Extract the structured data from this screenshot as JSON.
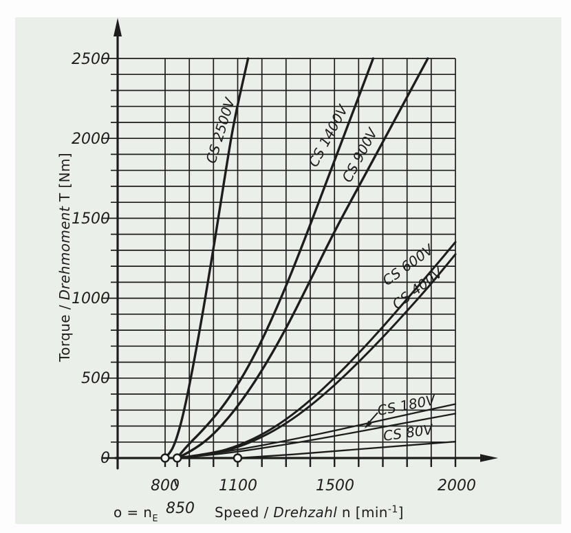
{
  "colors": {
    "ink": "#1d1d1b",
    "card_bg": "#eaefe9",
    "page_bg": "#fdfdfd"
  },
  "chart_data": {
    "type": "line",
    "title": "",
    "xlabel": "Speed / Drehzahl n [min-1]",
    "ylabel": "Torque / Drehmoment T [Nm]",
    "x_axis": {
      "min": 800,
      "max": 2000,
      "minor_step": 100,
      "tick_values": [
        800,
        850,
        1100,
        1500,
        2000
      ],
      "unit": "min-1"
    },
    "y_axis": {
      "min": 0,
      "max": 2500,
      "minor_step": 100,
      "major_step": 500,
      "tick_values": [
        0,
        500,
        1000,
        1500,
        2000,
        2500
      ],
      "unit": "Nm"
    },
    "xtick_labels": [
      "800",
      "850",
      "1100",
      "1500",
      "2000"
    ],
    "ytick_labels": [
      "2500",
      "2000",
      "1500",
      "1000",
      "500",
      "0"
    ],
    "grid": "on",
    "engagement_speeds": [
      800,
      850,
      1100
    ],
    "series": [
      {
        "name": "CS 2500V",
        "n_e": 800,
        "points": [
          [
            800,
            0
          ],
          [
            820,
            30
          ],
          [
            840,
            90
          ],
          [
            860,
            185
          ],
          [
            882,
            320
          ],
          [
            905,
            490
          ],
          [
            930,
            690
          ],
          [
            958,
            930
          ],
          [
            988,
            1200
          ],
          [
            1020,
            1500
          ],
          [
            1052,
            1810
          ],
          [
            1085,
            2110
          ],
          [
            1143,
            2500
          ]
        ]
      },
      {
        "name": "CS 1400V",
        "n_e": 850,
        "points": [
          [
            850,
            0
          ],
          [
            880,
            60
          ],
          [
            960,
            180
          ],
          [
            1060,
            360
          ],
          [
            1160,
            610
          ],
          [
            1260,
            930
          ],
          [
            1360,
            1300
          ],
          [
            1460,
            1700
          ],
          [
            1560,
            2100
          ],
          [
            1660,
            2500
          ]
        ]
      },
      {
        "name": "CS 900V",
        "n_e": 850,
        "points": [
          [
            850,
            0
          ],
          [
            900,
            35
          ],
          [
            990,
            130
          ],
          [
            1090,
            300
          ],
          [
            1190,
            520
          ],
          [
            1290,
            780
          ],
          [
            1390,
            1080
          ],
          [
            1490,
            1390
          ],
          [
            1590,
            1670
          ],
          [
            1690,
            1950
          ],
          [
            1790,
            2230
          ],
          [
            1886,
            2500
          ]
        ]
      },
      {
        "name": "CS 600V",
        "n_e": 850,
        "points": [
          [
            850,
            0
          ],
          [
            1000,
            30
          ],
          [
            1100,
            75
          ],
          [
            1200,
            145
          ],
          [
            1300,
            240
          ],
          [
            1400,
            360
          ],
          [
            1500,
            500
          ],
          [
            1600,
            655
          ],
          [
            1700,
            820
          ],
          [
            1800,
            995
          ],
          [
            1900,
            1170
          ],
          [
            2000,
            1351
          ]
        ]
      },
      {
        "name": "CS 400V",
        "n_e": 850,
        "points": [
          [
            850,
            0
          ],
          [
            1000,
            26
          ],
          [
            1100,
            66
          ],
          [
            1200,
            130
          ],
          [
            1300,
            215
          ],
          [
            1400,
            325
          ],
          [
            1500,
            455
          ],
          [
            1600,
            600
          ],
          [
            1700,
            755
          ],
          [
            1800,
            920
          ],
          [
            1900,
            1090
          ],
          [
            2000,
            1275
          ]
        ]
      },
      {
        "name": "CS 180V",
        "n_e": 850,
        "points": [
          [
            850,
            0
          ],
          [
            1000,
            28
          ],
          [
            1150,
            65
          ],
          [
            1300,
            108
          ],
          [
            1450,
            155
          ],
          [
            1600,
            205
          ],
          [
            1800,
            272
          ],
          [
            2000,
            338
          ]
        ]
      },
      {
        "name": "CS 180V (lower line)",
        "n_e": 850,
        "points": [
          [
            850,
            0
          ],
          [
            1000,
            20
          ],
          [
            1150,
            50
          ],
          [
            1300,
            85
          ],
          [
            1450,
            124
          ],
          [
            1600,
            165
          ],
          [
            1800,
            222
          ],
          [
            2000,
            278
          ]
        ]
      },
      {
        "name": "CS 80V",
        "n_e": 1100,
        "points": [
          [
            1100,
            0
          ],
          [
            1250,
            14
          ],
          [
            1400,
            31
          ],
          [
            1550,
            49
          ],
          [
            1700,
            67
          ],
          [
            1850,
            85
          ],
          [
            2000,
            103
          ]
        ]
      }
    ]
  },
  "labels": {
    "y_title": {
      "part1": "Torque / ",
      "part2": "Drehmoment",
      "part3": " T [Nm]"
    },
    "x_title": {
      "part1": "Speed / ",
      "part2": "Drehzahl",
      "part3": " n [min",
      "sup": "-1",
      "part4": "]"
    },
    "engagement_legend": {
      "part1": "o = n",
      "sub": "E"
    }
  }
}
